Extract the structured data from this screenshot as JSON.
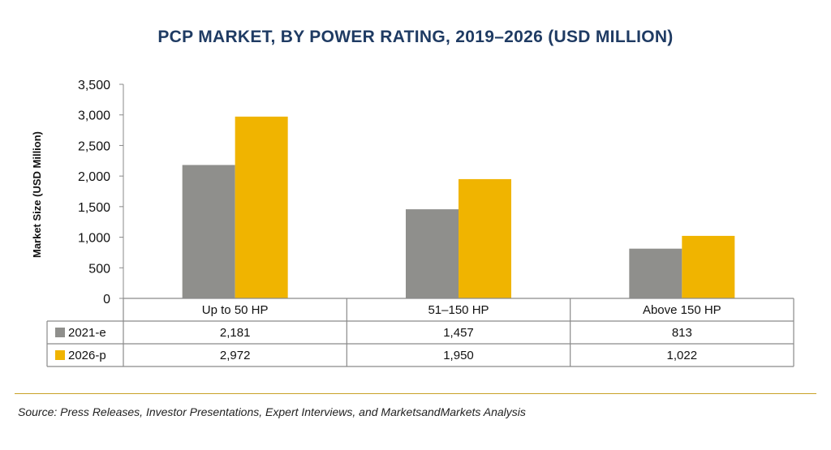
{
  "chart_data": {
    "type": "bar",
    "title": "PCP MARKET, BY POWER RATING, 2019–2026 (USD MILLION)",
    "ylabel": "Market Size (USD Million)",
    "xlabel": "",
    "categories": [
      "Up to 50 HP",
      "51–150 HP",
      "Above 150 HP"
    ],
    "series": [
      {
        "name": "2021-e",
        "color": "#8f8f8c",
        "values": [
          2181,
          1457,
          813
        ],
        "labels": [
          "2,181",
          "1,457",
          "813"
        ]
      },
      {
        "name": "2026-p",
        "color": "#f0b400",
        "values": [
          2972,
          1950,
          1022
        ],
        "labels": [
          "2,972",
          "1,950",
          "1,022"
        ]
      }
    ],
    "ylim": [
      0,
      3500
    ],
    "yticks": [
      0,
      500,
      1000,
      1500,
      2000,
      2500,
      3000,
      3500
    ],
    "ytick_labels": [
      "0",
      "500",
      "1,000",
      "1,500",
      "2,000",
      "2,500",
      "3,000",
      "3,500"
    ],
    "grid": false,
    "legend": "data-table-below"
  },
  "source": "Source: Press Releases, Investor Presentations, Expert Interviews, and MarketsandMarkets Analysis"
}
